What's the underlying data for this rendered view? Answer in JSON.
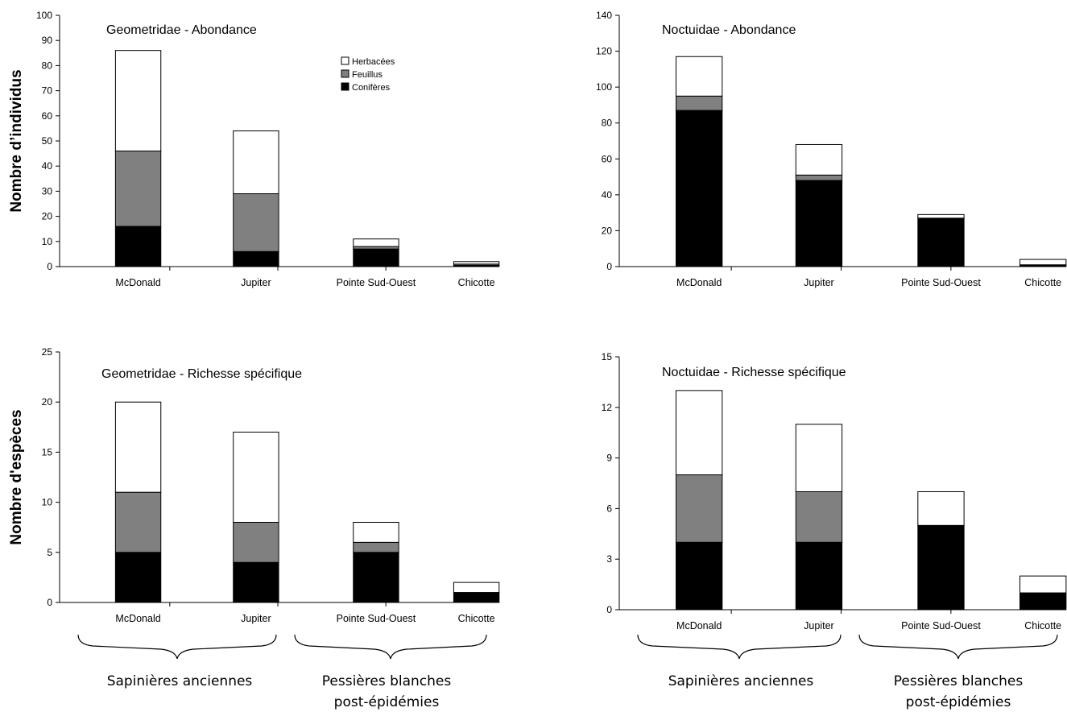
{
  "chart_data": [
    {
      "type": "bar",
      "stacked": true,
      "title": "Geometridae - Abondance",
      "ylabel": "Nombre d’individus",
      "categories": [
        "McDonald",
        "Jupiter",
        "Pointe Sud-Ouest",
        "Chicotte"
      ],
      "ylim": [
        0,
        100
      ],
      "yticks": [
        0,
        10,
        20,
        30,
        40,
        50,
        60,
        70,
        80,
        90,
        100
      ],
      "series": [
        {
          "name": "Conifères",
          "values": [
            16,
            6,
            7,
            0.5
          ]
        },
        {
          "name": "Feuillus",
          "values": [
            30,
            23,
            1,
            0.5
          ]
        },
        {
          "name": "Herbacées",
          "values": [
            40,
            25,
            3,
            1
          ]
        }
      ],
      "legend": "top-right"
    },
    {
      "type": "bar",
      "stacked": true,
      "title": "Noctuidae - Abondance",
      "ylabel": "",
      "categories": [
        "McDonald",
        "Jupiter",
        "Pointe Sud-Ouest",
        "Chicotte"
      ],
      "ylim": [
        0,
        140
      ],
      "yticks": [
        0,
        20,
        40,
        60,
        80,
        100,
        120,
        140
      ],
      "series": [
        {
          "name": "Conifères",
          "values": [
            87,
            48,
            27,
            1
          ]
        },
        {
          "name": "Feuillus",
          "values": [
            8,
            3,
            0,
            0
          ]
        },
        {
          "name": "Herbacées",
          "values": [
            22,
            17,
            2,
            3
          ]
        }
      ]
    },
    {
      "type": "bar",
      "stacked": true,
      "title": "Geometridae - Richesse spécifique",
      "ylabel": "Nombre d'espèces",
      "categories": [
        "McDonald",
        "Jupiter",
        "Pointe Sud-Ouest",
        "Chicotte"
      ],
      "ylim": [
        0,
        25
      ],
      "yticks": [
        0,
        5,
        10,
        15,
        20,
        25
      ],
      "series": [
        {
          "name": "Conifères",
          "values": [
            5,
            4,
            5,
            1
          ]
        },
        {
          "name": "Feuillus",
          "values": [
            6,
            4,
            1,
            0
          ]
        },
        {
          "name": "Herbacées",
          "values": [
            9,
            9,
            2,
            1
          ]
        }
      ]
    },
    {
      "type": "bar",
      "stacked": true,
      "title": "Noctuidae - Richesse spécifique",
      "ylabel": "",
      "categories": [
        "McDonald",
        "Jupiter",
        "Pointe Sud-Ouest",
        "Chicotte"
      ],
      "ylim": [
        0,
        15
      ],
      "yticks": [
        0,
        3,
        6,
        9,
        12,
        15
      ],
      "series": [
        {
          "name": "Conifères",
          "values": [
            4,
            4,
            5,
            1
          ]
        },
        {
          "name": "Feuillus",
          "values": [
            4,
            3,
            0,
            0
          ]
        },
        {
          "name": "Herbacées",
          "values": [
            5,
            4,
            2,
            1
          ]
        }
      ]
    }
  ],
  "legend_entries": [
    "Herbacées",
    "Feuillus",
    "Conifères"
  ],
  "colors": {
    "Conifères": "#000000",
    "Feuillus": "#808080",
    "Herbacées": "#ffffff"
  },
  "group_labels": {
    "left_group": "Sapinières anciennes",
    "right_group_line1": "Pessières blanches",
    "right_group_line2": "post-épidémies"
  }
}
